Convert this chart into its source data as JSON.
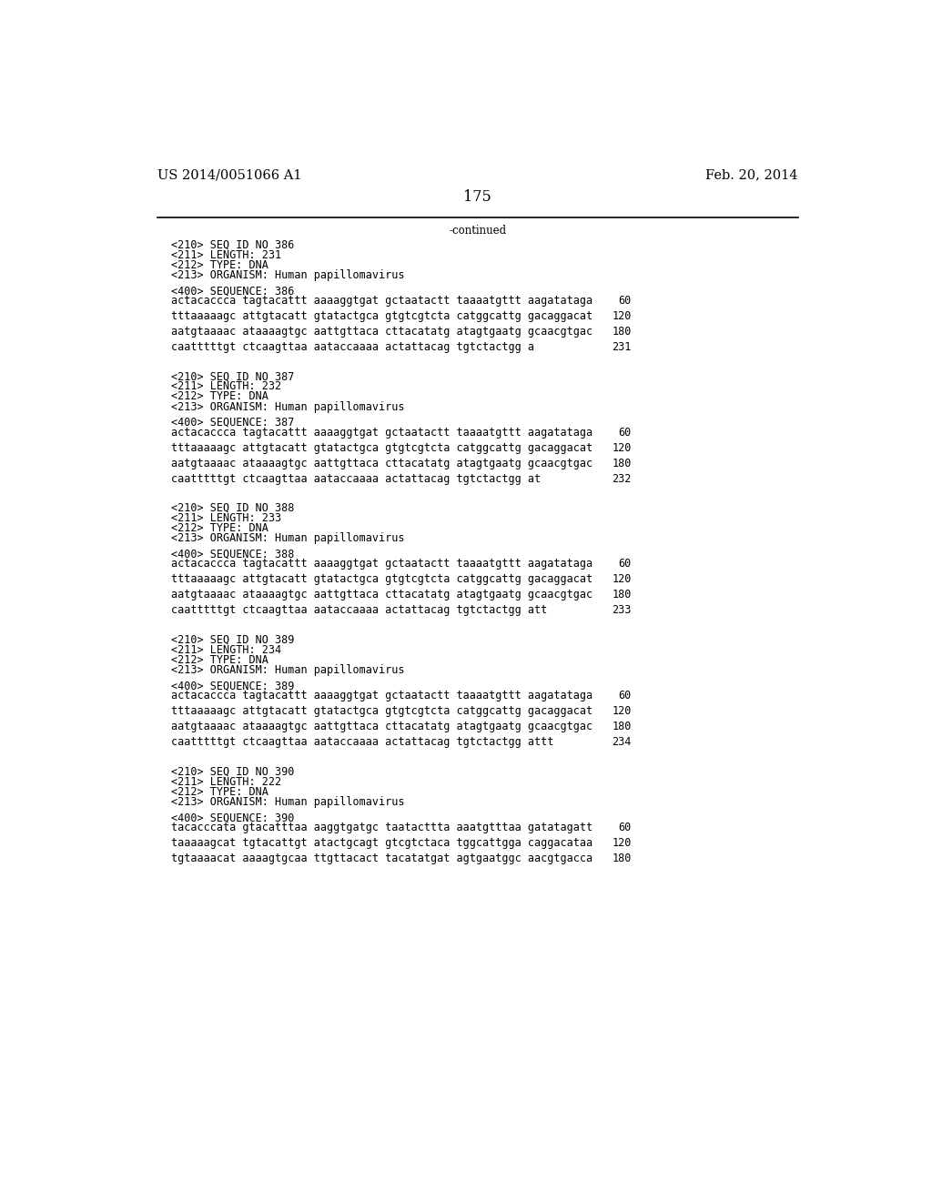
{
  "bg_color": "#ffffff",
  "header_left": "US 2014/0051066 A1",
  "header_right": "Feb. 20, 2014",
  "page_number": "175",
  "continued_text": "-continued",
  "font_size_header": 10.5,
  "font_size_mono": 8.5,
  "sections": [
    {
      "seq_id": "386",
      "length": "231",
      "type": "DNA",
      "organism": "Human papillomavirus",
      "sequence_lines": [
        [
          "actacaccca tagtacattt aaaaggtgat gctaatactt taaaatgttt aagatataga",
          "60"
        ],
        [
          "tttaaaaagc attgtacatt gtatactgca gtgtcgtcta catggcattg gacaggacat",
          "120"
        ],
        [
          "aatgtaaaac ataaaagtgc aattgttaca cttacatatg atagtgaatg gcaacgtgac",
          "180"
        ],
        [
          "caatttttgt ctcaagttaa aataccaaaa actattacag tgtctactgg a",
          "231"
        ]
      ]
    },
    {
      "seq_id": "387",
      "length": "232",
      "type": "DNA",
      "organism": "Human papillomavirus",
      "sequence_lines": [
        [
          "actacaccca tagtacattt aaaaggtgat gctaatactt taaaatgttt aagatataga",
          "60"
        ],
        [
          "tttaaaaagc attgtacatt gtatactgca gtgtcgtcta catggcattg gacaggacat",
          "120"
        ],
        [
          "aatgtaaaac ataaaagtgc aattgttaca cttacatatg atagtgaatg gcaacgtgac",
          "180"
        ],
        [
          "caatttttgt ctcaagttaa aataccaaaa actattacag tgtctactgg at",
          "232"
        ]
      ]
    },
    {
      "seq_id": "388",
      "length": "233",
      "type": "DNA",
      "organism": "Human papillomavirus",
      "sequence_lines": [
        [
          "actacaccca tagtacattt aaaaggtgat gctaatactt taaaatgttt aagatataga",
          "60"
        ],
        [
          "tttaaaaagc attgtacatt gtatactgca gtgtcgtcta catggcattg gacaggacat",
          "120"
        ],
        [
          "aatgtaaaac ataaaagtgc aattgttaca cttacatatg atagtgaatg gcaacgtgac",
          "180"
        ],
        [
          "caatttttgt ctcaagttaa aataccaaaa actattacag tgtctactgg att",
          "233"
        ]
      ]
    },
    {
      "seq_id": "389",
      "length": "234",
      "type": "DNA",
      "organism": "Human papillomavirus",
      "sequence_lines": [
        [
          "actacaccca tagtacattt aaaaggtgat gctaatactt taaaatgttt aagatataga",
          "60"
        ],
        [
          "tttaaaaagc attgtacatt gtatactgca gtgtcgtcta catggcattg gacaggacat",
          "120"
        ],
        [
          "aatgtaaaac ataaaagtgc aattgttaca cttacatatg atagtgaatg gcaacgtgac",
          "180"
        ],
        [
          "caatttttgt ctcaagttaa aataccaaaa actattacag tgtctactgg attt",
          "234"
        ]
      ]
    },
    {
      "seq_id": "390",
      "length": "222",
      "type": "DNA",
      "organism": "Human papillomavirus",
      "sequence_lines": [
        [
          "tacacccata gtacatttaa aaggtgatgc taatacttta aaatgtttaa gatatagatt",
          "60"
        ],
        [
          "taaaaagcat tgtacattgt atactgcagt gtcgtctaca tggcattgga caggacataa",
          "120"
        ],
        [
          "tgtaaaacat aaaagtgcaa ttgttacact tacatatgat agtgaatggc aacgtgacca",
          "180"
        ]
      ]
    }
  ]
}
